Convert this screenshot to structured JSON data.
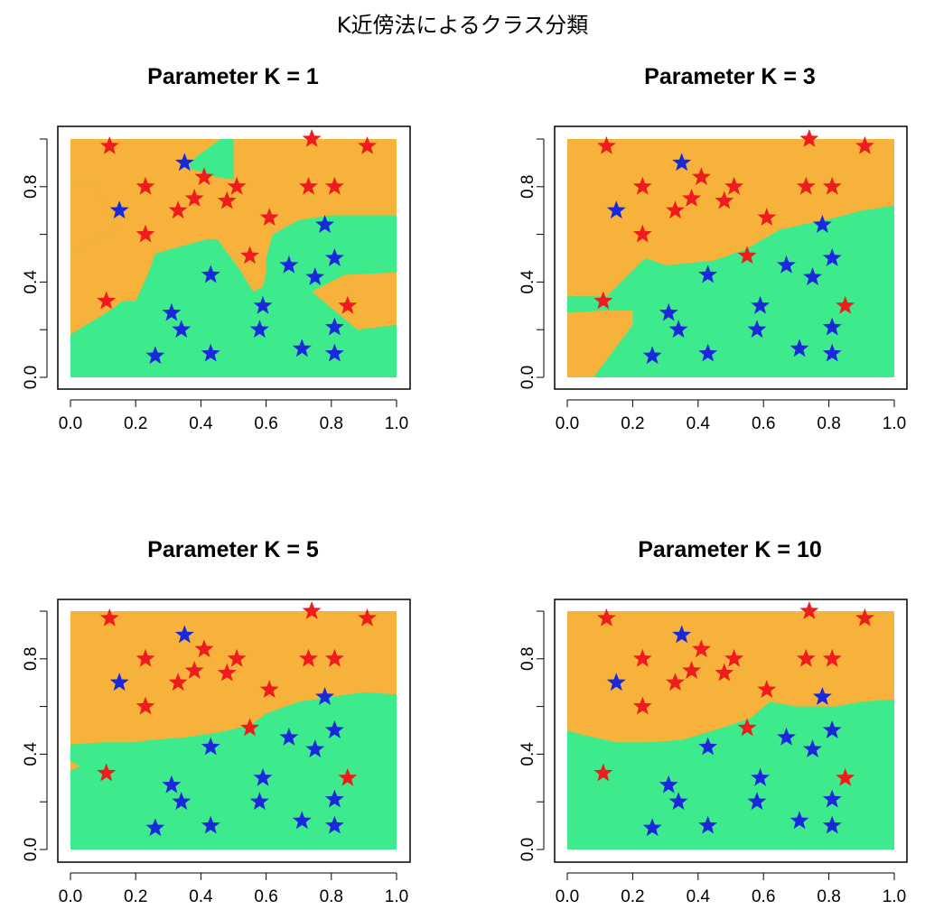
{
  "title": "K近傍法によるクラス分類",
  "colors": {
    "region_a": "#F7B23B",
    "region_b": "#3DEB8C",
    "class_a_star": "#EE1C1C",
    "class_b_star": "#1A28DC"
  },
  "chart_data": [
    {
      "type": "scatter",
      "title": "Parameter K =  1",
      "xlabel": "",
      "ylabel": "",
      "xlim": [
        0,
        1
      ],
      "ylim": [
        0,
        1
      ],
      "xticks": [
        "0.0",
        "0.2",
        "0.4",
        "0.6",
        "0.8",
        "1.0"
      ],
      "yticks": [
        "0.0",
        "0.4",
        "0.8"
      ],
      "boundary": "nearest-neighbor regions",
      "marker": "star",
      "series": [
        {
          "points": [
            [
              0.12,
              0.97
            ],
            [
              0.74,
              1.0
            ],
            [
              0.91,
              0.97
            ],
            [
              0.23,
              0.8
            ],
            [
              0.41,
              0.84
            ],
            [
              0.51,
              0.8
            ],
            [
              0.73,
              0.8
            ],
            [
              0.81,
              0.8
            ],
            [
              0.33,
              0.7
            ],
            [
              0.38,
              0.75
            ],
            [
              0.48,
              0.74
            ],
            [
              0.61,
              0.67
            ],
            [
              0.23,
              0.6
            ],
            [
              0.55,
              0.51
            ],
            [
              0.11,
              0.32
            ],
            [
              0.85,
              0.3
            ]
          ]
        },
        {
          "points": [
            [
              0.35,
              0.9
            ],
            [
              0.15,
              0.7
            ],
            [
              0.78,
              0.64
            ],
            [
              0.67,
              0.47
            ],
            [
              0.81,
              0.5
            ],
            [
              0.43,
              0.43
            ],
            [
              0.75,
              0.42
            ],
            [
              0.31,
              0.27
            ],
            [
              0.59,
              0.3
            ],
            [
              0.34,
              0.2
            ],
            [
              0.58,
              0.2
            ],
            [
              0.81,
              0.21
            ],
            [
              0.26,
              0.09
            ],
            [
              0.43,
              0.1
            ],
            [
              0.71,
              0.12
            ],
            [
              0.81,
              0.1
            ]
          ]
        }
      ]
    },
    {
      "type": "scatter",
      "title": "Parameter K =  3",
      "xlabel": "",
      "ylabel": "",
      "xlim": [
        0,
        1
      ],
      "ylim": [
        0,
        1
      ],
      "xticks": [
        "0.0",
        "0.2",
        "0.4",
        "0.6",
        "0.8",
        "1.0"
      ],
      "yticks": [
        "0.0",
        "0.4",
        "0.8"
      ],
      "boundary": "nearest-neighbor regions",
      "marker": "star",
      "series": [
        {
          "points": [
            [
              0.12,
              0.97
            ],
            [
              0.74,
              1.0
            ],
            [
              0.91,
              0.97
            ],
            [
              0.23,
              0.8
            ],
            [
              0.41,
              0.84
            ],
            [
              0.51,
              0.8
            ],
            [
              0.73,
              0.8
            ],
            [
              0.81,
              0.8
            ],
            [
              0.33,
              0.7
            ],
            [
              0.38,
              0.75
            ],
            [
              0.48,
              0.74
            ],
            [
              0.61,
              0.67
            ],
            [
              0.23,
              0.6
            ],
            [
              0.55,
              0.51
            ],
            [
              0.11,
              0.32
            ],
            [
              0.85,
              0.3
            ]
          ]
        },
        {
          "points": [
            [
              0.35,
              0.9
            ],
            [
              0.15,
              0.7
            ],
            [
              0.78,
              0.64
            ],
            [
              0.67,
              0.47
            ],
            [
              0.81,
              0.5
            ],
            [
              0.43,
              0.43
            ],
            [
              0.75,
              0.42
            ],
            [
              0.31,
              0.27
            ],
            [
              0.59,
              0.3
            ],
            [
              0.34,
              0.2
            ],
            [
              0.58,
              0.2
            ],
            [
              0.81,
              0.21
            ],
            [
              0.26,
              0.09
            ],
            [
              0.43,
              0.1
            ],
            [
              0.71,
              0.12
            ],
            [
              0.81,
              0.1
            ]
          ]
        }
      ]
    },
    {
      "type": "scatter",
      "title": "Parameter K =  5",
      "xlabel": "",
      "ylabel": "",
      "xlim": [
        0,
        1
      ],
      "ylim": [
        0,
        1
      ],
      "xticks": [
        "0.0",
        "0.2",
        "0.4",
        "0.6",
        "0.8",
        "1.0"
      ],
      "yticks": [
        "0.0",
        "0.4",
        "0.8"
      ],
      "boundary": "nearest-neighbor regions",
      "marker": "star",
      "series": [
        {
          "points": [
            [
              0.12,
              0.97
            ],
            [
              0.74,
              1.0
            ],
            [
              0.91,
              0.97
            ],
            [
              0.23,
              0.8
            ],
            [
              0.41,
              0.84
            ],
            [
              0.51,
              0.8
            ],
            [
              0.73,
              0.8
            ],
            [
              0.81,
              0.8
            ],
            [
              0.33,
              0.7
            ],
            [
              0.38,
              0.75
            ],
            [
              0.48,
              0.74
            ],
            [
              0.61,
              0.67
            ],
            [
              0.23,
              0.6
            ],
            [
              0.55,
              0.51
            ],
            [
              0.11,
              0.32
            ],
            [
              0.85,
              0.3
            ]
          ]
        },
        {
          "points": [
            [
              0.35,
              0.9
            ],
            [
              0.15,
              0.7
            ],
            [
              0.78,
              0.64
            ],
            [
              0.67,
              0.47
            ],
            [
              0.81,
              0.5
            ],
            [
              0.43,
              0.43
            ],
            [
              0.75,
              0.42
            ],
            [
              0.31,
              0.27
            ],
            [
              0.59,
              0.3
            ],
            [
              0.34,
              0.2
            ],
            [
              0.58,
              0.2
            ],
            [
              0.81,
              0.21
            ],
            [
              0.26,
              0.09
            ],
            [
              0.43,
              0.1
            ],
            [
              0.71,
              0.12
            ],
            [
              0.81,
              0.1
            ]
          ]
        }
      ]
    },
    {
      "type": "scatter",
      "title": "Parameter K =  10",
      "xlabel": "",
      "ylabel": "",
      "xlim": [
        0,
        1
      ],
      "ylim": [
        0,
        1
      ],
      "xticks": [
        "0.0",
        "0.2",
        "0.4",
        "0.6",
        "0.8",
        "1.0"
      ],
      "yticks": [
        "0.0",
        "0.4",
        "0.8"
      ],
      "boundary": "nearest-neighbor regions",
      "marker": "star",
      "series": [
        {
          "points": [
            [
              0.12,
              0.97
            ],
            [
              0.74,
              1.0
            ],
            [
              0.91,
              0.97
            ],
            [
              0.23,
              0.8
            ],
            [
              0.41,
              0.84
            ],
            [
              0.51,
              0.8
            ],
            [
              0.73,
              0.8
            ],
            [
              0.81,
              0.8
            ],
            [
              0.33,
              0.7
            ],
            [
              0.38,
              0.75
            ],
            [
              0.48,
              0.74
            ],
            [
              0.61,
              0.67
            ],
            [
              0.23,
              0.6
            ],
            [
              0.55,
              0.51
            ],
            [
              0.11,
              0.32
            ],
            [
              0.85,
              0.3
            ]
          ]
        },
        {
          "points": [
            [
              0.35,
              0.9
            ],
            [
              0.15,
              0.7
            ],
            [
              0.78,
              0.64
            ],
            [
              0.67,
              0.47
            ],
            [
              0.81,
              0.5
            ],
            [
              0.43,
              0.43
            ],
            [
              0.75,
              0.42
            ],
            [
              0.31,
              0.27
            ],
            [
              0.59,
              0.3
            ],
            [
              0.34,
              0.2
            ],
            [
              0.58,
              0.2
            ],
            [
              0.81,
              0.21
            ],
            [
              0.26,
              0.09
            ],
            [
              0.43,
              0.1
            ],
            [
              0.71,
              0.12
            ],
            [
              0.81,
              0.1
            ]
          ]
        }
      ]
    }
  ]
}
